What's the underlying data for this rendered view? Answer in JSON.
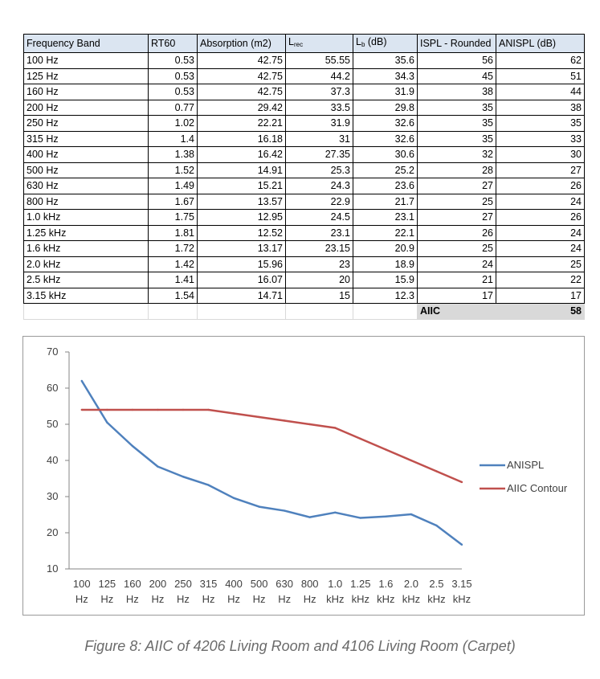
{
  "table": {
    "headers": {
      "band": "Frequency Band",
      "rt60": "RT60",
      "absorption": "Absorption (m2)",
      "lrec_main": "L",
      "lrec_sub": "rec",
      "lb_main": "L",
      "lb_sub": "b",
      "lb_suffix": " (dB)",
      "ispl": "ISPL - Rounded",
      "anispl": "ANISPL (dB)"
    },
    "rows": [
      [
        "100 Hz",
        "0.53",
        "42.75",
        "55.55",
        "35.6",
        "56",
        "62"
      ],
      [
        "125 Hz",
        "0.53",
        "42.75",
        "44.2",
        "34.3",
        "45",
        "51"
      ],
      [
        "160 Hz",
        "0.53",
        "42.75",
        "37.3",
        "31.9",
        "38",
        "44"
      ],
      [
        "200 Hz",
        "0.77",
        "29.42",
        "33.5",
        "29.8",
        "35",
        "38"
      ],
      [
        "250 Hz",
        "1.02",
        "22.21",
        "31.9",
        "32.6",
        "35",
        "35"
      ],
      [
        "315 Hz",
        "1.4",
        "16.18",
        "31",
        "32.6",
        "35",
        "33"
      ],
      [
        "400 Hz",
        "1.38",
        "16.42",
        "27.35",
        "30.6",
        "32",
        "30"
      ],
      [
        "500 Hz",
        "1.52",
        "14.91",
        "25.3",
        "25.2",
        "28",
        "27"
      ],
      [
        "630 Hz",
        "1.49",
        "15.21",
        "24.3",
        "23.6",
        "27",
        "26"
      ],
      [
        "800 Hz",
        "1.67",
        "13.57",
        "22.9",
        "21.7",
        "25",
        "24"
      ],
      [
        "1.0 kHz",
        "1.75",
        "12.95",
        "24.5",
        "23.1",
        "27",
        "26"
      ],
      [
        "1.25 kHz",
        "1.81",
        "12.52",
        "23.1",
        "22.1",
        "26",
        "24"
      ],
      [
        "1.6 kHz",
        "1.72",
        "13.17",
        "23.15",
        "20.9",
        "25",
        "24"
      ],
      [
        "2.0 kHz",
        "1.42",
        "15.96",
        "23",
        "18.9",
        "24",
        "25"
      ],
      [
        "2.5 kHz",
        "1.41",
        "16.07",
        "20",
        "15.9",
        "21",
        "22"
      ],
      [
        "3.15 kHz",
        "1.54",
        "14.71",
        "15",
        "12.3",
        "17",
        "17"
      ]
    ],
    "footer": {
      "label": "AIIC",
      "value": "58",
      "shade": "#d9d9d9"
    },
    "header_bg": "#dbe5f1"
  },
  "chart_data": {
    "type": "line",
    "categories": [
      [
        "100",
        "Hz"
      ],
      [
        "125",
        "Hz"
      ],
      [
        "160",
        "Hz"
      ],
      [
        "200",
        "Hz"
      ],
      [
        "250",
        "Hz"
      ],
      [
        "315",
        "Hz"
      ],
      [
        "400",
        "Hz"
      ],
      [
        "500",
        "Hz"
      ],
      [
        "630",
        "Hz"
      ],
      [
        "800",
        "Hz"
      ],
      [
        "1.0",
        "kHz"
      ],
      [
        "1.25",
        "kHz"
      ],
      [
        "1.6",
        "kHz"
      ],
      [
        "2.0",
        "kHz"
      ],
      [
        "2.5",
        "kHz"
      ],
      [
        "3.15",
        "kHz"
      ]
    ],
    "ylim": [
      10,
      70
    ],
    "yticks": [
      10,
      20,
      30,
      40,
      50,
      60,
      70
    ],
    "grid": false,
    "legend": "right",
    "series": [
      {
        "name": "ANISPL",
        "color": "#4f81bd",
        "values": [
          62,
          50.5,
          44,
          38.3,
          35.5,
          33.2,
          29.6,
          27.2,
          26.1,
          24.3,
          25.6,
          24.1,
          24.5,
          25.1,
          22,
          16.7
        ]
      },
      {
        "name": "AIIC Contour",
        "color": "#c0504d",
        "values": [
          54,
          54,
          54,
          54,
          54,
          54,
          53,
          52,
          51,
          50,
          49,
          46,
          43,
          40,
          37,
          34
        ]
      }
    ]
  },
  "caption": "Figure 8: AIIC of 4206 Living Room and 4106 Living Room (Carpet)"
}
